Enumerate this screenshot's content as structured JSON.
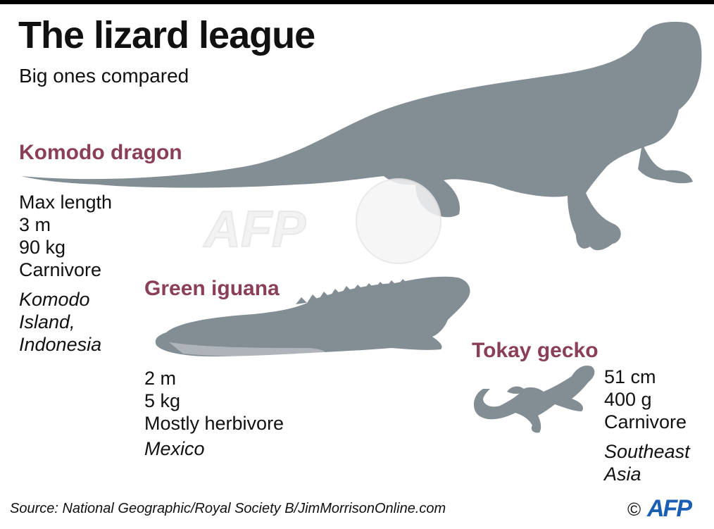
{
  "header": {
    "title": "The lizard league",
    "subtitle": "Big ones compared"
  },
  "colors": {
    "silhouette": "#838d94",
    "species_name": "#8a3e58",
    "text": "#111111"
  },
  "lizards": [
    {
      "name": "Komodo dragon",
      "length_label": "Max length",
      "length": "3 m",
      "weight": "90 kg",
      "diet": "Carnivore",
      "habitat_lines": [
        "Komodo",
        "Island,",
        "Indonesia"
      ]
    },
    {
      "name": "Green iguana",
      "length": "2 m",
      "weight": "5 kg",
      "diet": "Mostly herbivore",
      "habitat_lines": [
        "Mexico"
      ]
    },
    {
      "name": "Tokay gecko",
      "length": "51 cm",
      "weight": "400 g",
      "diet": "Carnivore",
      "habitat_lines": [
        "Southeast",
        "Asia"
      ]
    }
  ],
  "footer": {
    "source": "Source: National Geographic/Royal Society B/JimMorrisonOnline.com",
    "copyright_symbol": "©",
    "agency_logo": "AFP"
  }
}
